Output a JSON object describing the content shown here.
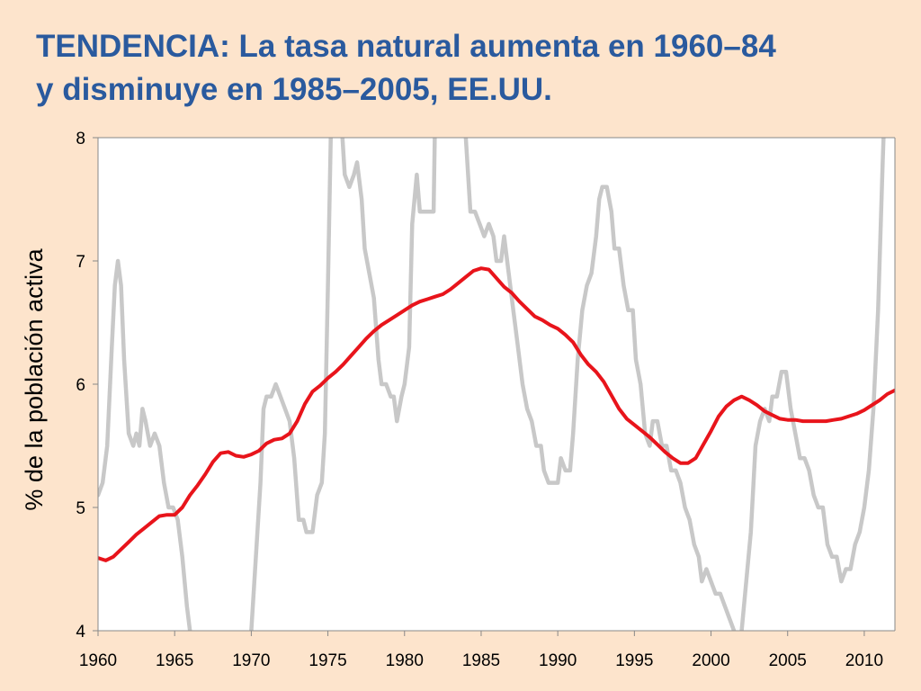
{
  "title": {
    "line1": "TENDENCIA: La tasa natural aumenta en 1960–84",
    "line2": "y disminuye en 1985–2005, EE.UU."
  },
  "colors": {
    "background": "#fde4cc",
    "title": "#2a5a9e",
    "natural_rate": "#e8141b",
    "actual_rate": "#c8c8c8"
  },
  "chart_data": {
    "type": "line",
    "ylabel": "% de la población activa",
    "xlabel": "",
    "xlim": [
      1960,
      2012
    ],
    "ylim": [
      4,
      8
    ],
    "x_ticks": [
      1960,
      1965,
      1970,
      1975,
      1980,
      1985,
      1990,
      1995,
      2000,
      2005,
      2010
    ],
    "y_ticks": [
      4,
      5,
      6,
      7,
      8
    ],
    "grid": false,
    "legend": "none",
    "series": [
      {
        "key": "actual",
        "color": "#c8c8c8",
        "points": [
          [
            1960.0,
            5.1
          ],
          [
            1960.3,
            5.2
          ],
          [
            1960.6,
            5.5
          ],
          [
            1960.9,
            6.3
          ],
          [
            1961.1,
            6.8
          ],
          [
            1961.3,
            7.0
          ],
          [
            1961.5,
            6.8
          ],
          [
            1961.7,
            6.2
          ],
          [
            1962.0,
            5.6
          ],
          [
            1962.3,
            5.5
          ],
          [
            1962.5,
            5.6
          ],
          [
            1962.7,
            5.5
          ],
          [
            1962.9,
            5.8
          ],
          [
            1963.1,
            5.7
          ],
          [
            1963.4,
            5.5
          ],
          [
            1963.7,
            5.6
          ],
          [
            1964.0,
            5.5
          ],
          [
            1964.3,
            5.2
          ],
          [
            1964.6,
            5.0
          ],
          [
            1964.9,
            5.0
          ],
          [
            1965.2,
            4.9
          ],
          [
            1965.5,
            4.6
          ],
          [
            1965.8,
            4.2
          ],
          [
            1966.0,
            4.0
          ],
          [
            1966.1,
            3.85
          ]
        ]
      },
      {
        "key": "actual",
        "color": "#c8c8c8",
        "points": [
          [
            1969.9,
            3.85
          ],
          [
            1970.0,
            4.0
          ],
          [
            1970.3,
            4.6
          ],
          [
            1970.6,
            5.2
          ],
          [
            1970.8,
            5.8
          ],
          [
            1971.0,
            5.9
          ],
          [
            1971.3,
            5.9
          ],
          [
            1971.6,
            6.0
          ],
          [
            1971.9,
            5.9
          ],
          [
            1972.2,
            5.8
          ],
          [
            1972.5,
            5.7
          ],
          [
            1972.8,
            5.4
          ],
          [
            1973.1,
            4.9
          ],
          [
            1973.4,
            4.9
          ],
          [
            1973.6,
            4.8
          ],
          [
            1974.0,
            4.8
          ],
          [
            1974.3,
            5.1
          ],
          [
            1974.6,
            5.2
          ],
          [
            1974.8,
            5.6
          ],
          [
            1975.0,
            6.8
          ],
          [
            1975.2,
            8.1
          ],
          [
            1975.3,
            8.5
          ]
        ]
      },
      {
        "key": "actual",
        "color": "#c8c8c8",
        "points": [
          [
            1975.7,
            8.5
          ],
          [
            1975.9,
            8.1
          ],
          [
            1976.1,
            7.7
          ],
          [
            1976.4,
            7.6
          ],
          [
            1976.7,
            7.7
          ],
          [
            1976.9,
            7.8
          ],
          [
            1977.2,
            7.5
          ],
          [
            1977.4,
            7.1
          ],
          [
            1977.7,
            6.9
          ],
          [
            1978.0,
            6.7
          ],
          [
            1978.3,
            6.2
          ],
          [
            1978.5,
            6.0
          ],
          [
            1978.8,
            6.0
          ],
          [
            1979.1,
            5.9
          ],
          [
            1979.3,
            5.9
          ],
          [
            1979.5,
            5.7
          ],
          [
            1979.8,
            5.9
          ],
          [
            1980.0,
            6.0
          ],
          [
            1980.3,
            6.3
          ],
          [
            1980.5,
            7.3
          ],
          [
            1980.8,
            7.7
          ],
          [
            1981.0,
            7.4
          ],
          [
            1981.3,
            7.4
          ],
          [
            1981.6,
            7.4
          ],
          [
            1981.9,
            7.4
          ],
          [
            1982.0,
            8.2
          ],
          [
            1982.1,
            8.5
          ]
        ]
      },
      {
        "key": "actual",
        "color": "#c8c8c8",
        "points": [
          [
            1983.8,
            8.5
          ],
          [
            1984.0,
            8.0
          ],
          [
            1984.3,
            7.4
          ],
          [
            1984.6,
            7.4
          ],
          [
            1984.9,
            7.3
          ],
          [
            1985.2,
            7.2
          ],
          [
            1985.5,
            7.3
          ],
          [
            1985.8,
            7.2
          ],
          [
            1986.0,
            7.0
          ],
          [
            1986.3,
            7.0
          ],
          [
            1986.5,
            7.2
          ],
          [
            1986.8,
            6.9
          ],
          [
            1987.1,
            6.6
          ],
          [
            1987.4,
            6.3
          ],
          [
            1987.7,
            6.0
          ],
          [
            1988.0,
            5.8
          ],
          [
            1988.3,
            5.7
          ],
          [
            1988.6,
            5.5
          ],
          [
            1988.9,
            5.5
          ],
          [
            1989.1,
            5.3
          ],
          [
            1989.4,
            5.2
          ],
          [
            1989.7,
            5.2
          ],
          [
            1990.0,
            5.2
          ],
          [
            1990.2,
            5.4
          ],
          [
            1990.5,
            5.3
          ],
          [
            1990.8,
            5.3
          ],
          [
            1991.0,
            5.6
          ],
          [
            1991.3,
            6.2
          ],
          [
            1991.6,
            6.6
          ],
          [
            1991.9,
            6.8
          ],
          [
            1992.2,
            6.9
          ],
          [
            1992.5,
            7.2
          ],
          [
            1992.7,
            7.5
          ],
          [
            1992.9,
            7.6
          ],
          [
            1993.2,
            7.6
          ],
          [
            1993.5,
            7.4
          ],
          [
            1993.7,
            7.1
          ],
          [
            1994.0,
            7.1
          ],
          [
            1994.3,
            6.8
          ],
          [
            1994.6,
            6.6
          ],
          [
            1994.9,
            6.6
          ],
          [
            1995.1,
            6.2
          ],
          [
            1995.4,
            6.0
          ],
          [
            1995.7,
            5.6
          ],
          [
            1996.0,
            5.5
          ],
          [
            1996.2,
            5.7
          ],
          [
            1996.5,
            5.7
          ],
          [
            1996.8,
            5.5
          ],
          [
            1997.1,
            5.5
          ],
          [
            1997.4,
            5.3
          ],
          [
            1997.7,
            5.3
          ],
          [
            1998.0,
            5.2
          ],
          [
            1998.3,
            5.0
          ],
          [
            1998.6,
            4.9
          ],
          [
            1998.9,
            4.7
          ],
          [
            1999.2,
            4.6
          ],
          [
            1999.4,
            4.4
          ],
          [
            1999.7,
            4.5
          ],
          [
            2000.0,
            4.4
          ],
          [
            2000.3,
            4.3
          ],
          [
            2000.6,
            4.3
          ],
          [
            2000.9,
            4.2
          ],
          [
            2001.2,
            4.1
          ],
          [
            2001.5,
            4.0
          ],
          [
            2001.7,
            3.85
          ]
        ]
      },
      {
        "key": "actual",
        "color": "#c8c8c8",
        "points": [
          [
            2001.8,
            3.85
          ],
          [
            2002.0,
            4.0
          ],
          [
            2002.3,
            4.4
          ],
          [
            2002.6,
            4.8
          ],
          [
            2002.9,
            5.5
          ],
          [
            2003.2,
            5.7
          ],
          [
            2003.5,
            5.8
          ],
          [
            2003.8,
            5.7
          ],
          [
            2004.0,
            5.9
          ],
          [
            2004.3,
            5.9
          ],
          [
            2004.6,
            6.1
          ],
          [
            2004.9,
            6.1
          ],
          [
            2005.2,
            5.8
          ],
          [
            2005.5,
            5.6
          ],
          [
            2005.8,
            5.4
          ],
          [
            2006.1,
            5.4
          ],
          [
            2006.4,
            5.3
          ],
          [
            2006.7,
            5.1
          ],
          [
            2007.0,
            5.0
          ],
          [
            2007.3,
            5.0
          ],
          [
            2007.6,
            4.7
          ],
          [
            2007.9,
            4.6
          ],
          [
            2008.2,
            4.6
          ],
          [
            2008.5,
            4.4
          ],
          [
            2008.8,
            4.5
          ],
          [
            2009.1,
            4.5
          ],
          [
            2009.4,
            4.7
          ],
          [
            2009.7,
            4.8
          ],
          [
            2010.0,
            5.0
          ],
          [
            2010.3,
            5.3
          ],
          [
            2010.6,
            5.8
          ],
          [
            2010.9,
            6.6
          ],
          [
            2011.2,
            7.8
          ],
          [
            2011.4,
            8.5
          ]
        ]
      },
      {
        "key": "natural",
        "color": "#e8141b",
        "points": [
          [
            1960.0,
            4.59
          ],
          [
            1960.5,
            4.57
          ],
          [
            1961.0,
            4.6
          ],
          [
            1961.5,
            4.66
          ],
          [
            1962.0,
            4.72
          ],
          [
            1962.5,
            4.78
          ],
          [
            1963.0,
            4.83
          ],
          [
            1963.5,
            4.88
          ],
          [
            1964.0,
            4.93
          ],
          [
            1964.5,
            4.94
          ],
          [
            1965.0,
            4.94
          ],
          [
            1965.5,
            5.0
          ],
          [
            1966.0,
            5.1
          ],
          [
            1966.5,
            5.18
          ],
          [
            1967.0,
            5.27
          ],
          [
            1967.5,
            5.37
          ],
          [
            1968.0,
            5.44
          ],
          [
            1968.5,
            5.45
          ],
          [
            1969.0,
            5.42
          ],
          [
            1969.5,
            5.41
          ],
          [
            1970.0,
            5.43
          ],
          [
            1970.5,
            5.46
          ],
          [
            1971.0,
            5.52
          ],
          [
            1971.5,
            5.55
          ],
          [
            1972.0,
            5.56
          ],
          [
            1972.5,
            5.6
          ],
          [
            1973.0,
            5.7
          ],
          [
            1973.5,
            5.84
          ],
          [
            1974.0,
            5.94
          ],
          [
            1974.5,
            5.99
          ],
          [
            1975.0,
            6.05
          ],
          [
            1975.5,
            6.1
          ],
          [
            1976.0,
            6.16
          ],
          [
            1976.5,
            6.23
          ],
          [
            1977.0,
            6.3
          ],
          [
            1977.5,
            6.37
          ],
          [
            1978.0,
            6.43
          ],
          [
            1978.5,
            6.48
          ],
          [
            1979.0,
            6.52
          ],
          [
            1979.5,
            6.56
          ],
          [
            1980.0,
            6.6
          ],
          [
            1980.5,
            6.64
          ],
          [
            1981.0,
            6.67
          ],
          [
            1981.5,
            6.69
          ],
          [
            1982.0,
            6.71
          ],
          [
            1982.5,
            6.73
          ],
          [
            1983.0,
            6.77
          ],
          [
            1983.5,
            6.82
          ],
          [
            1984.0,
            6.87
          ],
          [
            1984.5,
            6.92
          ],
          [
            1985.0,
            6.94
          ],
          [
            1985.5,
            6.93
          ],
          [
            1986.0,
            6.86
          ],
          [
            1986.5,
            6.79
          ],
          [
            1987.0,
            6.74
          ],
          [
            1987.5,
            6.67
          ],
          [
            1988.0,
            6.61
          ],
          [
            1988.5,
            6.55
          ],
          [
            1989.0,
            6.52
          ],
          [
            1989.5,
            6.48
          ],
          [
            1990.0,
            6.45
          ],
          [
            1990.5,
            6.4
          ],
          [
            1991.0,
            6.34
          ],
          [
            1991.5,
            6.24
          ],
          [
            1992.0,
            6.16
          ],
          [
            1992.5,
            6.1
          ],
          [
            1993.0,
            6.02
          ],
          [
            1993.5,
            5.91
          ],
          [
            1994.0,
            5.8
          ],
          [
            1994.5,
            5.72
          ],
          [
            1995.0,
            5.67
          ],
          [
            1995.5,
            5.62
          ],
          [
            1996.0,
            5.57
          ],
          [
            1996.5,
            5.51
          ],
          [
            1997.0,
            5.45
          ],
          [
            1997.5,
            5.4
          ],
          [
            1998.0,
            5.36
          ],
          [
            1998.5,
            5.36
          ],
          [
            1999.0,
            5.4
          ],
          [
            1999.5,
            5.51
          ],
          [
            2000.0,
            5.62
          ],
          [
            2000.5,
            5.74
          ],
          [
            2001.0,
            5.82
          ],
          [
            2001.5,
            5.87
          ],
          [
            2002.0,
            5.9
          ],
          [
            2002.5,
            5.87
          ],
          [
            2003.0,
            5.83
          ],
          [
            2003.5,
            5.78
          ],
          [
            2004.0,
            5.75
          ],
          [
            2004.5,
            5.72
          ],
          [
            2005.0,
            5.71
          ],
          [
            2005.5,
            5.71
          ],
          [
            2006.0,
            5.7
          ],
          [
            2006.5,
            5.7
          ],
          [
            2007.0,
            5.7
          ],
          [
            2007.5,
            5.7
          ],
          [
            2008.0,
            5.71
          ],
          [
            2008.5,
            5.72
          ],
          [
            2009.0,
            5.74
          ],
          [
            2009.5,
            5.76
          ],
          [
            2010.0,
            5.79
          ],
          [
            2010.5,
            5.83
          ],
          [
            2011.0,
            5.87
          ],
          [
            2011.5,
            5.92
          ],
          [
            2012.0,
            5.95
          ],
          [
            2012.3,
            5.96
          ]
        ]
      }
    ]
  }
}
